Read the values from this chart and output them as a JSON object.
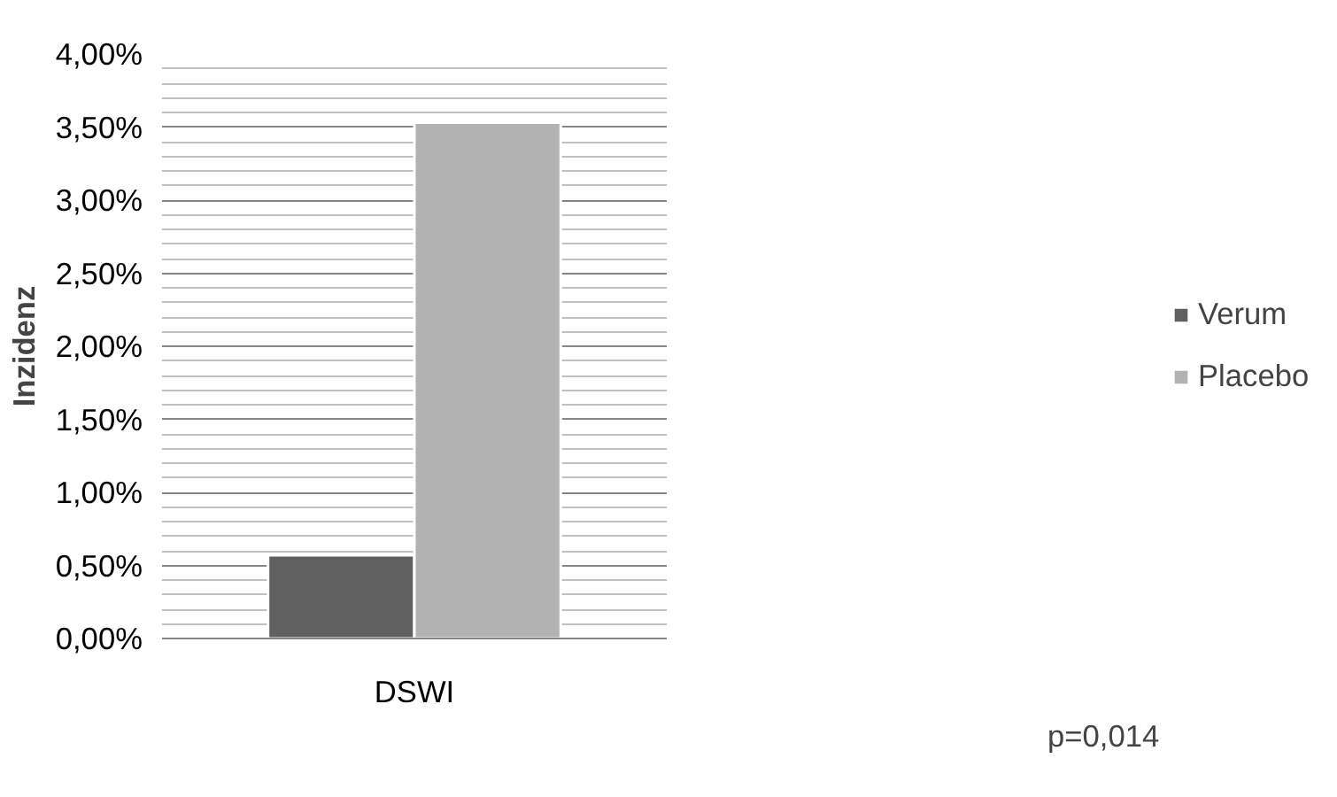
{
  "chart_data": {
    "type": "bar",
    "ylabel": "Inzidenz",
    "categories": [
      "DSWI"
    ],
    "series": [
      {
        "name": "Verum",
        "color": "#606060",
        "values": [
          0.57
        ]
      },
      {
        "name": "Placebo",
        "color": "#b2b2b2",
        "values": [
          3.53
        ]
      }
    ],
    "ylim": [
      0,
      4
    ],
    "yticks": [
      {
        "value": 0,
        "label": "0,00%"
      },
      {
        "value": 0.5,
        "label": "0,50%"
      },
      {
        "value": 1,
        "label": "1,00%"
      },
      {
        "value": 1.5,
        "label": "1,50%"
      },
      {
        "value": 2,
        "label": "2,00%"
      },
      {
        "value": 2.5,
        "label": "2,50%"
      },
      {
        "value": 3,
        "label": "3,00%"
      },
      {
        "value": 3.5,
        "label": "3,50%"
      },
      {
        "value": 4,
        "label": "4,00%"
      }
    ],
    "grid": "y",
    "legend": "right",
    "annotations": [
      "p=0,014"
    ]
  }
}
